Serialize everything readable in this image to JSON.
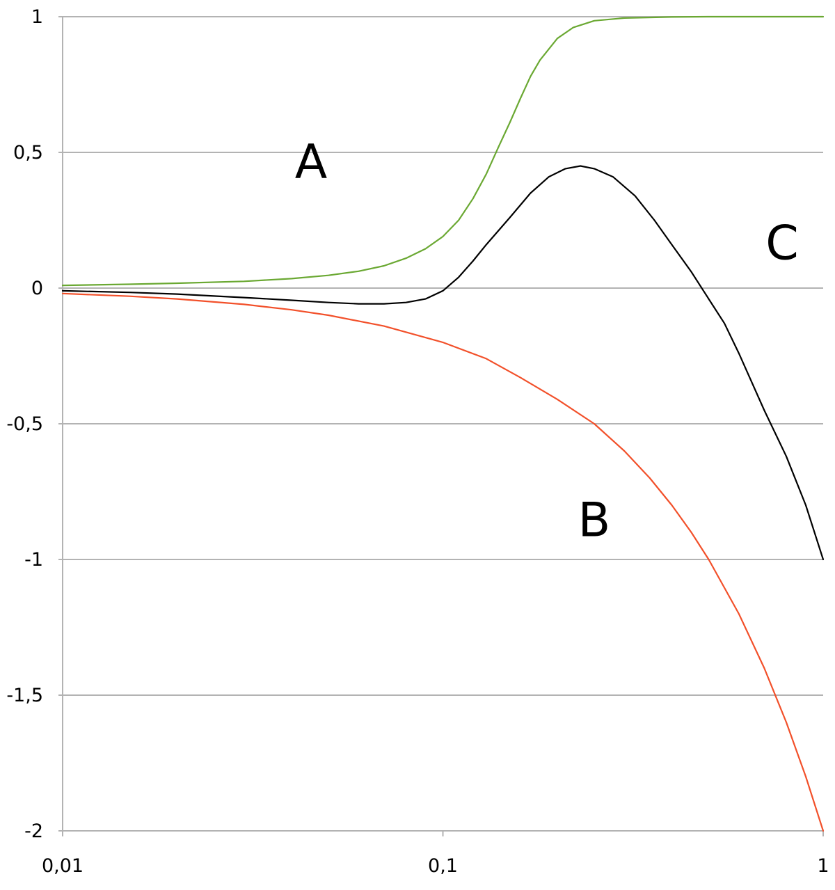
{
  "chart_data": {
    "type": "line",
    "title": "",
    "xlabel": "",
    "ylabel": "",
    "x_scale": "log",
    "xlim": [
      0.01,
      1
    ],
    "ylim": [
      -2,
      1
    ],
    "grid": true,
    "legend": "none",
    "x_ticks": [
      {
        "value": 0.01,
        "label": "0,01"
      },
      {
        "value": 0.1,
        "label": "0,1"
      },
      {
        "value": 1,
        "label": "1"
      }
    ],
    "y_ticks": [
      {
        "value": 1,
        "label": "1"
      },
      {
        "value": 0.5,
        "label": "0,5"
      },
      {
        "value": 0,
        "label": "0"
      },
      {
        "value": -0.5,
        "label": "-0,5"
      },
      {
        "value": -1,
        "label": "-1"
      },
      {
        "value": -1.5,
        "label": "-1,5"
      },
      {
        "value": -2,
        "label": "-2"
      }
    ],
    "series": [
      {
        "name": "A",
        "color": "#6aa832",
        "label_at": [
          0.045,
          0.47
        ],
        "points": [
          [
            0.01,
            0.01
          ],
          [
            0.015,
            0.014
          ],
          [
            0.02,
            0.018
          ],
          [
            0.03,
            0.025
          ],
          [
            0.04,
            0.035
          ],
          [
            0.05,
            0.047
          ],
          [
            0.06,
            0.062
          ],
          [
            0.07,
            0.082
          ],
          [
            0.08,
            0.11
          ],
          [
            0.09,
            0.145
          ],
          [
            0.1,
            0.19
          ],
          [
            0.11,
            0.25
          ],
          [
            0.12,
            0.33
          ],
          [
            0.13,
            0.42
          ],
          [
            0.14,
            0.52
          ],
          [
            0.15,
            0.61
          ],
          [
            0.16,
            0.7
          ],
          [
            0.17,
            0.78
          ],
          [
            0.18,
            0.84
          ],
          [
            0.2,
            0.92
          ],
          [
            0.22,
            0.96
          ],
          [
            0.25,
            0.985
          ],
          [
            0.3,
            0.995
          ],
          [
            0.4,
            0.999
          ],
          [
            0.5,
            1.0
          ],
          [
            0.7,
            1.0
          ],
          [
            1,
            1.0
          ]
        ]
      },
      {
        "name": "B",
        "color": "#f2502a",
        "label_at": [
          0.25,
          -0.85
        ],
        "points": [
          [
            0.01,
            -0.02
          ],
          [
            0.015,
            -0.03
          ],
          [
            0.02,
            -0.04
          ],
          [
            0.03,
            -0.06
          ],
          [
            0.04,
            -0.08
          ],
          [
            0.05,
            -0.1
          ],
          [
            0.07,
            -0.14
          ],
          [
            0.1,
            -0.2
          ],
          [
            0.13,
            -0.26
          ],
          [
            0.16,
            -0.33
          ],
          [
            0.2,
            -0.41
          ],
          [
            0.25,
            -0.5
          ],
          [
            0.3,
            -0.6
          ],
          [
            0.35,
            -0.7
          ],
          [
            0.4,
            -0.8
          ],
          [
            0.45,
            -0.9
          ],
          [
            0.5,
            -1.0
          ],
          [
            0.6,
            -1.2
          ],
          [
            0.7,
            -1.4
          ],
          [
            0.8,
            -1.6
          ],
          [
            0.9,
            -1.8
          ],
          [
            1,
            -2.0
          ]
        ]
      },
      {
        "name": "C",
        "color": "#000000",
        "label_at": [
          0.78,
          0.17
        ],
        "points": [
          [
            0.01,
            -0.01
          ],
          [
            0.015,
            -0.016
          ],
          [
            0.02,
            -0.022
          ],
          [
            0.03,
            -0.035
          ],
          [
            0.04,
            -0.045
          ],
          [
            0.05,
            -0.053
          ],
          [
            0.06,
            -0.058
          ],
          [
            0.07,
            -0.058
          ],
          [
            0.08,
            -0.053
          ],
          [
            0.09,
            -0.04
          ],
          [
            0.1,
            -0.01
          ],
          [
            0.11,
            0.04
          ],
          [
            0.12,
            0.1
          ],
          [
            0.13,
            0.16
          ],
          [
            0.15,
            0.26
          ],
          [
            0.17,
            0.35
          ],
          [
            0.19,
            0.41
          ],
          [
            0.21,
            0.44
          ],
          [
            0.23,
            0.45
          ],
          [
            0.25,
            0.44
          ],
          [
            0.28,
            0.41
          ],
          [
            0.32,
            0.34
          ],
          [
            0.36,
            0.25
          ],
          [
            0.4,
            0.16
          ],
          [
            0.45,
            0.06
          ],
          [
            0.5,
            -0.04
          ],
          [
            0.55,
            -0.13
          ],
          [
            0.6,
            -0.24
          ],
          [
            0.7,
            -0.45
          ],
          [
            0.8,
            -0.62
          ],
          [
            0.9,
            -0.8
          ],
          [
            1,
            -1.0
          ]
        ]
      }
    ]
  }
}
